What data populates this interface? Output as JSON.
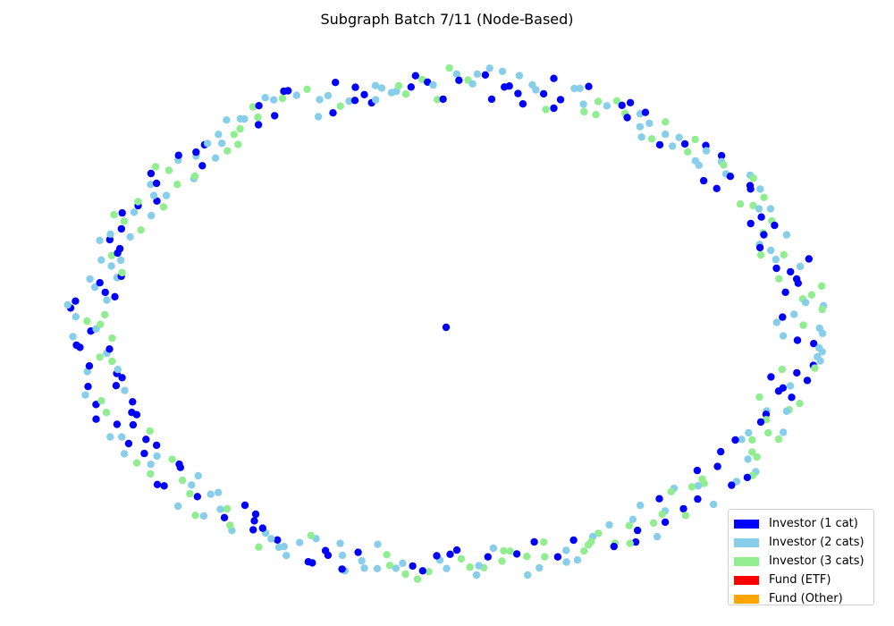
{
  "title": "Subgraph Batch 7/11 (Node-Based)",
  "legend": [
    {
      "label": "Investor (1 cat)",
      "color": "#0000ff"
    },
    {
      "label": "Investor (2 cats)",
      "color": "#87ceeb"
    },
    {
      "label": "Investor (3 cats)",
      "color": "#90ee90"
    },
    {
      "label": "Fund (ETF)",
      "color": "#ff0000"
    },
    {
      "label": "Fund (Other)",
      "color": "#ffa500"
    }
  ],
  "graph": {
    "layout": "ring",
    "node_counts": {
      "Investor (1 cat)": 143,
      "Investor (2 cats)": 148,
      "Investor (3 cats)": 110
    },
    "center_node": {
      "category": "Investor (1 cat)"
    },
    "seed": 7
  }
}
